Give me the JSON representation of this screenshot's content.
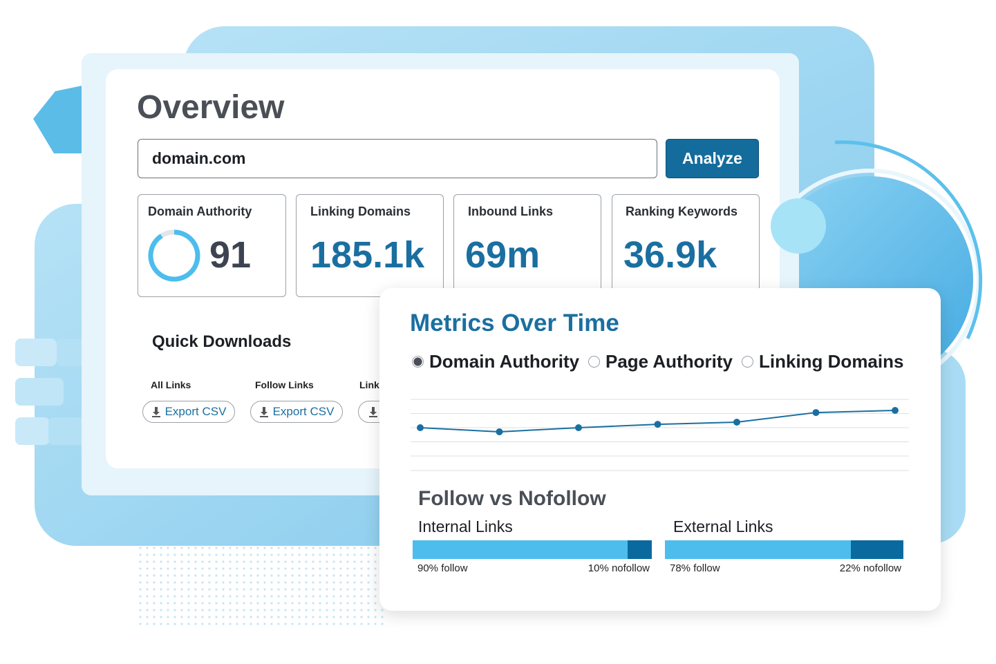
{
  "overview": {
    "title": "Overview",
    "search_value": "domain.com",
    "button": "Analyze",
    "metrics": [
      {
        "label": "Domain Authority",
        "value": 91
      },
      {
        "label": "Linking Domains",
        "value": "185.1k"
      },
      {
        "label": "Inbound Links",
        "value": "69m"
      },
      {
        "label": "Ranking Keywords",
        "value": "36.9k"
      }
    ],
    "quick_downloads": {
      "title": "Quick Downloads",
      "items": [
        {
          "label": "All Links",
          "button": "Export CSV"
        },
        {
          "label": "Follow Links",
          "button": "Export CSV"
        },
        {
          "label": "Link"
        }
      ]
    }
  },
  "metrics_over_time": {
    "title": "Metrics Over Time",
    "options": [
      "Domain Authority",
      "Page Authority",
      "Linking Domains"
    ],
    "selected": 0
  },
  "chart_data": {
    "type": "line",
    "values": [
      2.0,
      1.71,
      2.0,
      2.24,
      2.39,
      3.07,
      3.22
    ],
    "ylim": [
      0,
      4
    ],
    "color": "#1a6fa0"
  },
  "follow_nofollow": {
    "title": "Follow vs Nofollow",
    "follow_color": "#4dbdee",
    "nofollow_color": "#0a6aa0",
    "groups": [
      {
        "label": "Internal Links",
        "follow": 90,
        "follow_label": "90% follow",
        "nofollow": 10,
        "nofollow_label": "10% nofollow"
      },
      {
        "label": "External Links",
        "follow": 78,
        "follow_label": "78% follow",
        "nofollow": 22,
        "nofollow_label": "22% nofollow"
      }
    ]
  }
}
